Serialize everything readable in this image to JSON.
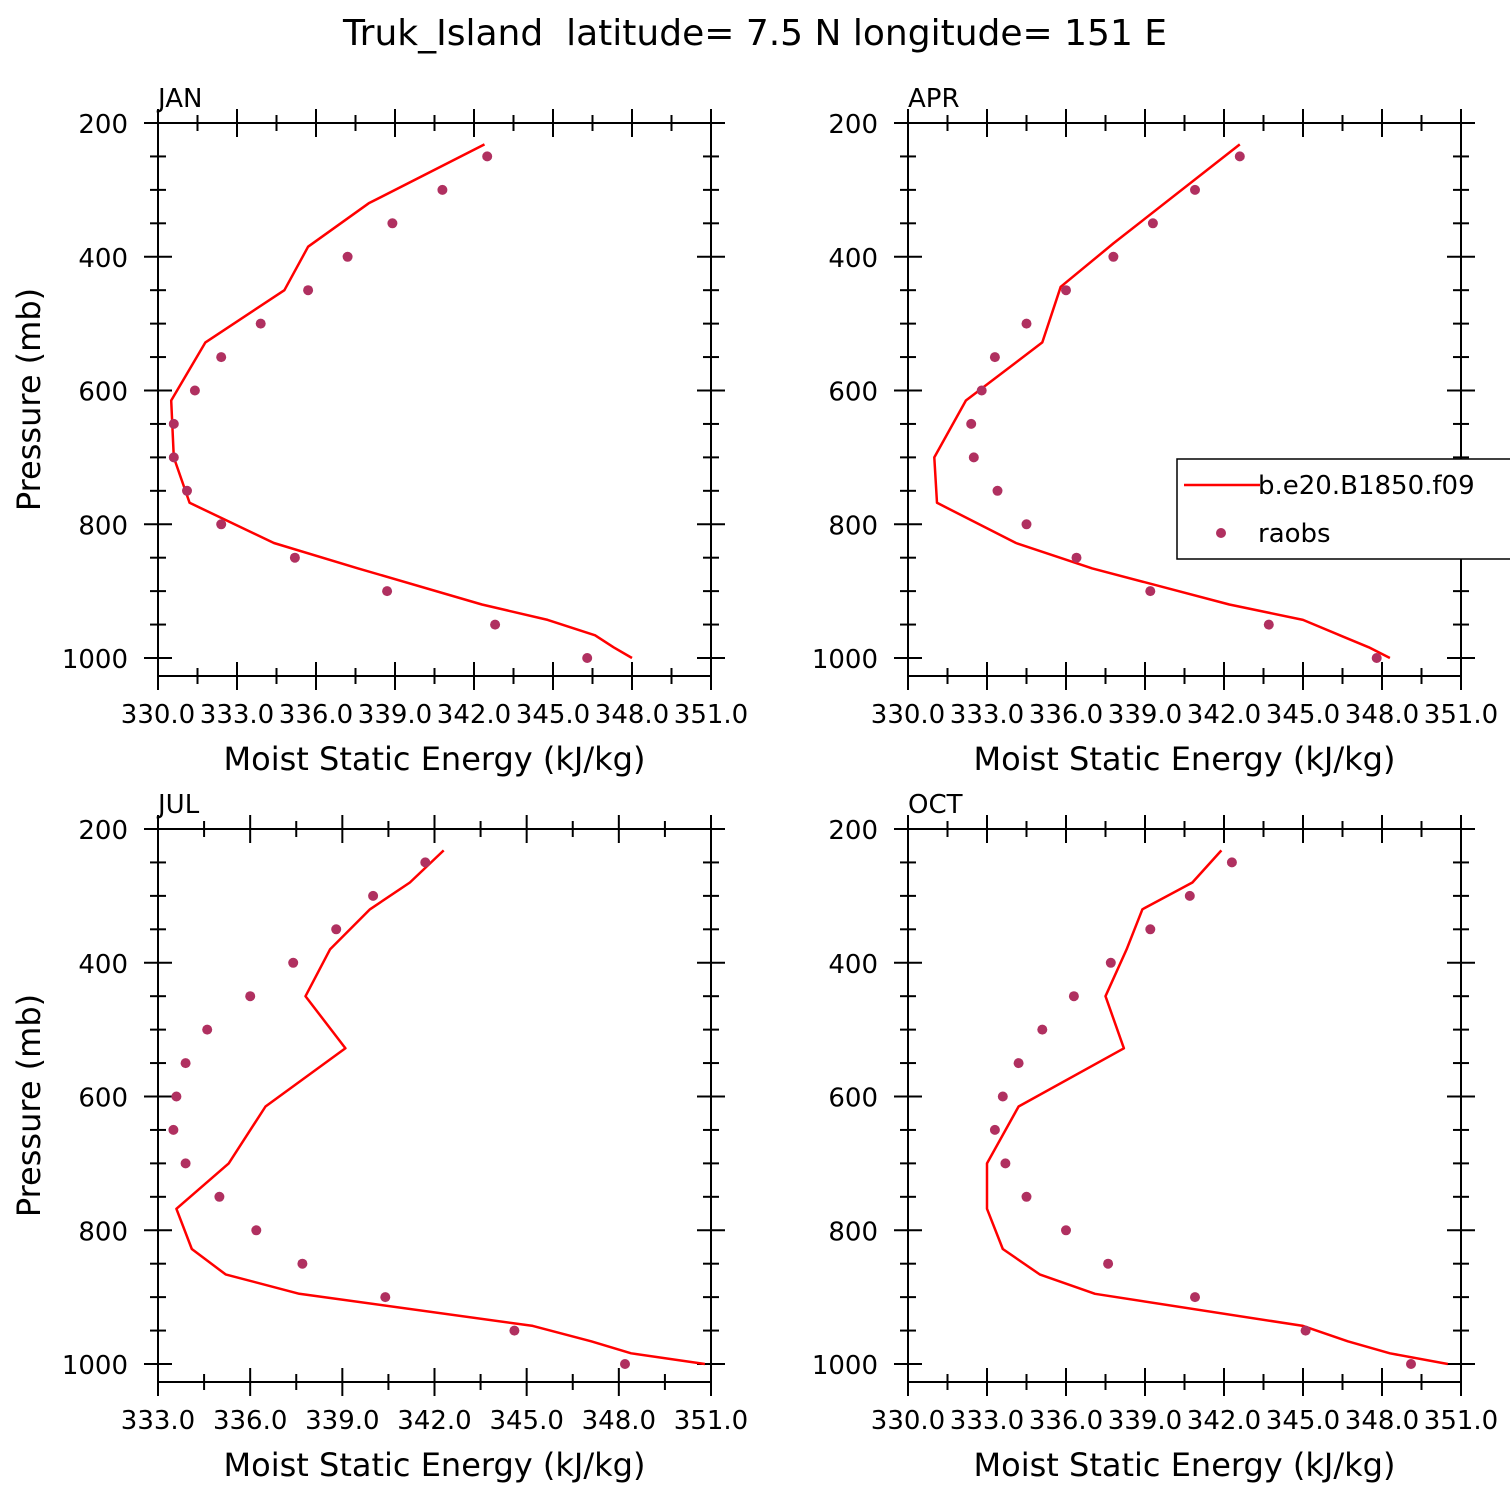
{
  "figure": {
    "title": "Truk_Island  latitude= 7.5 N longitude= 151 E"
  },
  "legend": {
    "placement": "right, overlapping APR panel",
    "model_label": "b.e20.B1850.f09",
    "obs_label": "raobs"
  },
  "colors": {
    "model_line": "#ff0000",
    "obs_marker": "#b03060",
    "axes": "#000000",
    "background": "#ffffff"
  },
  "chart_data": [
    {
      "type": "line",
      "panel_label": "JAN",
      "xlabel": "Moist Static Energy (kJ/kg)",
      "ylabel": "Pressure (mb)",
      "xlim": [
        330,
        351
      ],
      "ylim": [
        1000,
        200
      ],
      "xtick_labels": [
        "330.0",
        "333.0",
        "336.0",
        "339.0",
        "342.0",
        "345.0",
        "348.0",
        "351.0"
      ],
      "ytick_labels": [
        "200",
        "400",
        "600",
        "800",
        "1000"
      ],
      "series": [
        {
          "name": "b.e20.B1850.f09",
          "kind": "line",
          "x": [
            342.4,
            338.0,
            335.7,
            334.8,
            331.8,
            330.5,
            330.6,
            331.2,
            334.4,
            337.6,
            342.3,
            344.8,
            346.6,
            347.3,
            348.0
          ],
          "y": [
            232,
            320,
            385,
            450,
            528,
            615,
            700,
            768,
            828,
            866,
            920,
            943,
            966,
            984,
            1000
          ]
        },
        {
          "name": "raobs",
          "kind": "scatter",
          "x": [
            342.5,
            340.8,
            338.9,
            337.2,
            335.7,
            333.9,
            332.4,
            331.4,
            330.6,
            330.6,
            331.1,
            332.4,
            335.2,
            338.7,
            342.8,
            346.3
          ],
          "y": [
            250,
            300,
            350,
            400,
            450,
            500,
            550,
            600,
            650,
            700,
            750,
            800,
            850,
            900,
            950,
            1000
          ]
        }
      ]
    },
    {
      "type": "line",
      "panel_label": "APR",
      "xlabel": "Moist Static Energy (kJ/kg)",
      "ylabel": "",
      "xlim": [
        330,
        351
      ],
      "ylim": [
        1000,
        200
      ],
      "xtick_labels": [
        "330.0",
        "333.0",
        "336.0",
        "339.0",
        "342.0",
        "345.0",
        "348.0",
        "351.0"
      ],
      "ytick_labels": [
        "200",
        "400",
        "600",
        "800",
        "1000"
      ],
      "series": [
        {
          "name": "b.e20.B1850.f09",
          "kind": "line",
          "x": [
            342.6,
            337.8,
            335.8,
            335.1,
            332.2,
            331.0,
            331.1,
            334.1,
            337.0,
            342.2,
            345.0,
            346.4,
            347.5,
            348.3
          ],
          "y": [
            232,
            380,
            445,
            528,
            615,
            700,
            768,
            828,
            866,
            920,
            943,
            966,
            984,
            1000
          ]
        },
        {
          "name": "raobs",
          "kind": "scatter",
          "x": [
            342.6,
            340.9,
            339.3,
            337.8,
            336.0,
            334.5,
            333.3,
            332.8,
            332.4,
            332.5,
            333.4,
            334.5,
            336.4,
            339.2,
            343.7,
            347.8
          ],
          "y": [
            250,
            300,
            350,
            400,
            450,
            500,
            550,
            600,
            650,
            700,
            750,
            800,
            850,
            900,
            950,
            1000
          ]
        }
      ]
    },
    {
      "type": "line",
      "panel_label": "JUL",
      "xlabel": "Moist Static Energy (kJ/kg)",
      "ylabel": "Pressure (mb)",
      "xlim": [
        333,
        351
      ],
      "ylim": [
        1000,
        200
      ],
      "xtick_labels": [
        "333.0",
        "336.0",
        "339.0",
        "342.0",
        "345.0",
        "348.0",
        "351.0"
      ],
      "ytick_labels": [
        "200",
        "400",
        "600",
        "800",
        "1000"
      ],
      "series": [
        {
          "name": "b.e20.B1850.f09",
          "kind": "line",
          "x": [
            342.3,
            341.2,
            339.9,
            338.6,
            337.8,
            339.1,
            336.5,
            335.3,
            333.6,
            334.1,
            335.2,
            337.6,
            345.2,
            347.1,
            348.4,
            350.8
          ],
          "y": [
            232,
            280,
            320,
            380,
            450,
            528,
            615,
            700,
            768,
            828,
            866,
            895,
            943,
            966,
            984,
            1000
          ]
        },
        {
          "name": "raobs",
          "kind": "scatter",
          "x": [
            341.7,
            340.0,
            338.8,
            337.4,
            336.0,
            334.6,
            333.9,
            333.6,
            333.5,
            333.9,
            335.0,
            336.2,
            337.7,
            340.4,
            344.6,
            348.2
          ],
          "y": [
            250,
            300,
            350,
            400,
            450,
            500,
            550,
            600,
            650,
            700,
            750,
            800,
            850,
            900,
            950,
            1000
          ]
        }
      ]
    },
    {
      "type": "line",
      "panel_label": "OCT",
      "xlabel": "Moist Static Energy (kJ/kg)",
      "ylabel": "",
      "xlim": [
        330,
        351
      ],
      "ylim": [
        1000,
        200
      ],
      "xtick_labels": [
        "330.0",
        "333.0",
        "336.0",
        "339.0",
        "342.0",
        "345.0",
        "348.0",
        "351.0"
      ],
      "ytick_labels": [
        "200",
        "400",
        "600",
        "800",
        "1000"
      ],
      "series": [
        {
          "name": "b.e20.B1850.f09",
          "kind": "line",
          "x": [
            341.9,
            340.8,
            338.9,
            338.3,
            337.5,
            338.2,
            334.2,
            333.0,
            333.0,
            333.6,
            335.0,
            337.1,
            345.0,
            346.7,
            348.3,
            350.5
          ],
          "y": [
            232,
            280,
            320,
            380,
            450,
            528,
            615,
            700,
            768,
            828,
            866,
            895,
            943,
            966,
            984,
            1000
          ]
        },
        {
          "name": "raobs",
          "kind": "scatter",
          "x": [
            342.3,
            340.7,
            339.2,
            337.7,
            336.3,
            335.1,
            334.2,
            333.6,
            333.3,
            333.7,
            334.5,
            336.0,
            337.6,
            340.9,
            345.1,
            349.1
          ],
          "y": [
            250,
            300,
            350,
            400,
            450,
            500,
            550,
            600,
            650,
            700,
            750,
            800,
            850,
            900,
            950,
            1000
          ]
        }
      ]
    }
  ]
}
